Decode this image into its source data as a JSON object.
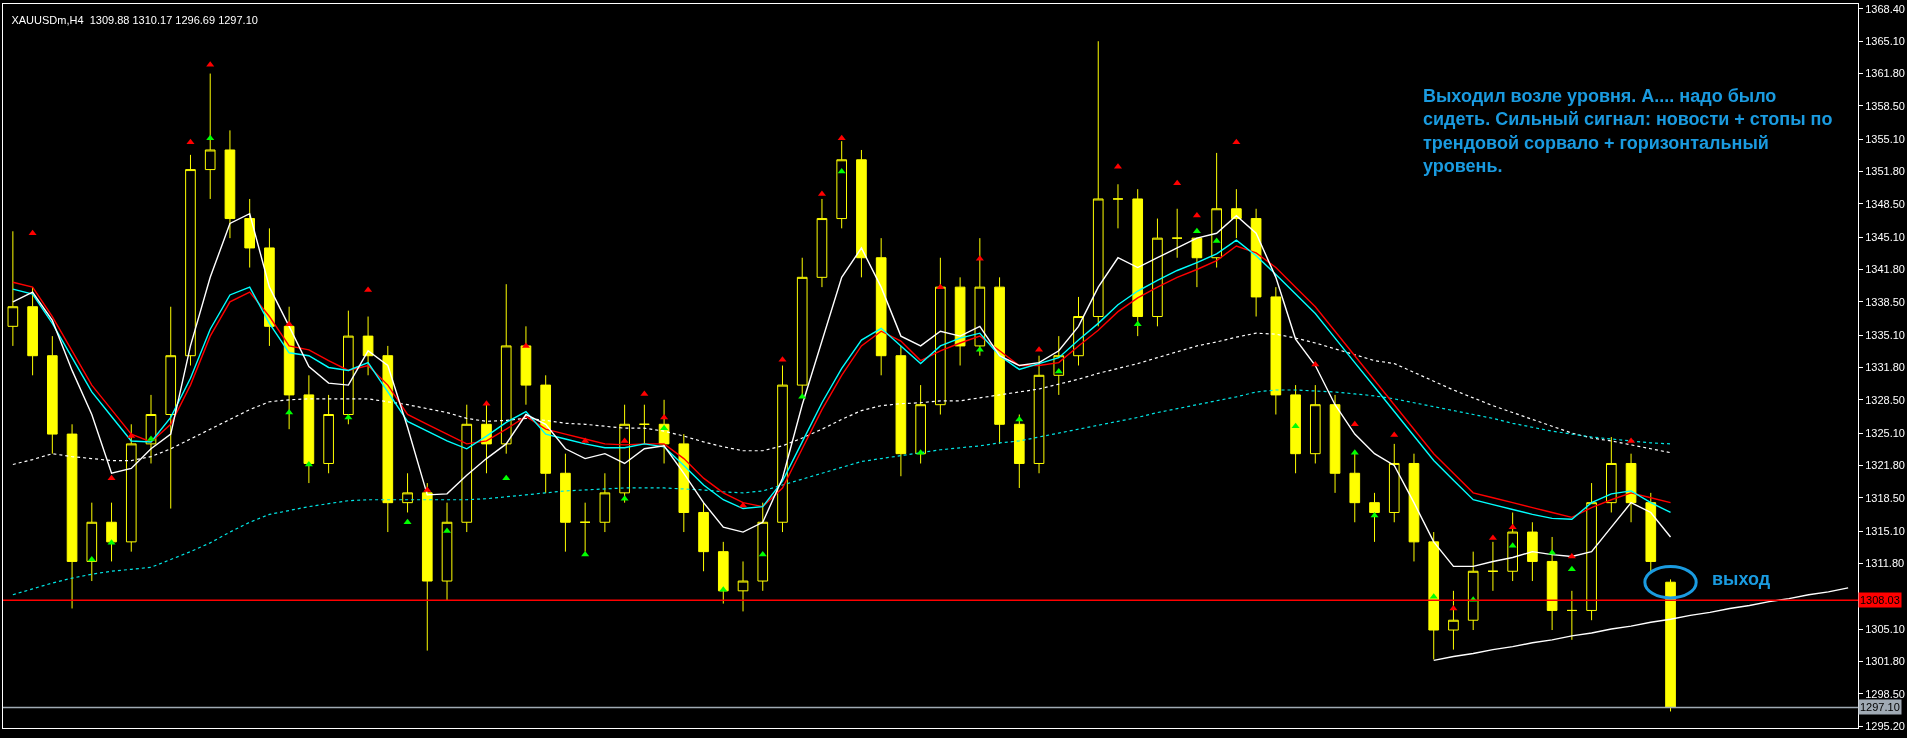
{
  "chart_data": {
    "type": "candlestick",
    "title": "XAUUSDm,H4  1309.88 1310.17 1296.69 1297.10",
    "categories": [
      null,
      null,
      null,
      null,
      null,
      null,
      null,
      null,
      null,
      null,
      null,
      null,
      null,
      null,
      null,
      null,
      null,
      null,
      null,
      null,
      null,
      null,
      null,
      null,
      null,
      null,
      null,
      null,
      null,
      null,
      null,
      null,
      null,
      null,
      null,
      null,
      null,
      null,
      null,
      null,
      null,
      null,
      null,
      null,
      null,
      null,
      null,
      null,
      null,
      null,
      null,
      null,
      null,
      null,
      null,
      null,
      null,
      null,
      null,
      null,
      null,
      null,
      null,
      null,
      null,
      null,
      null,
      null,
      null,
      null,
      null,
      null,
      null,
      null,
      null,
      null,
      null,
      null,
      null,
      null,
      null,
      null,
      null,
      null,
      null,
      null,
      null,
      null,
      null,
      null,
      null,
      null,
      null,
      null
    ],
    "color": "#ffff00",
    "ohlc": [
      [
        1336,
        1345.7,
        1334,
        1338
      ],
      [
        1338,
        1340,
        1331,
        1333
      ],
      [
        1333,
        1335,
        1323,
        1325
      ],
      [
        1325,
        1326,
        1307.2,
        1312
      ],
      [
        1312,
        1318,
        1310,
        1316
      ],
      [
        1316,
        1318,
        1312,
        1314
      ],
      [
        1314,
        1326,
        1313,
        1324
      ],
      [
        1324,
        1329,
        1322,
        1327
      ],
      [
        1327,
        1338,
        1317.4,
        1333
      ],
      [
        1333,
        1353.5,
        1332,
        1352
      ],
      [
        1352,
        1361.8,
        1349,
        1354
      ],
      [
        1354,
        1356,
        1345,
        1347
      ],
      [
        1347,
        1349,
        1342,
        1344
      ],
      [
        1344,
        1346,
        1334,
        1336
      ],
      [
        1336,
        1338,
        1325.5,
        1329
      ],
      [
        1329,
        1331,
        1320,
        1322
      ],
      [
        1322,
        1329,
        1321,
        1327
      ],
      [
        1327,
        1337.6,
        1326,
        1335
      ],
      [
        1335,
        1337,
        1331,
        1333
      ],
      [
        1333,
        1334,
        1315,
        1318
      ],
      [
        1318,
        1321,
        1317,
        1319
      ],
      [
        1319,
        1320,
        1302.9,
        1310
      ],
      [
        1310,
        1318,
        1308,
        1316
      ],
      [
        1316,
        1328,
        1315,
        1326
      ],
      [
        1326,
        1328,
        1321,
        1324
      ],
      [
        1324,
        1340.3,
        1323,
        1334
      ],
      [
        1334,
        1336,
        1328,
        1330
      ],
      [
        1330,
        1331,
        1319,
        1321
      ],
      [
        1321,
        1323,
        1313,
        1316
      ],
      [
        1316,
        1318,
        1313,
        1316
      ],
      [
        1316,
        1321,
        1315,
        1319
      ],
      [
        1319,
        1328,
        1318,
        1326
      ],
      [
        1326,
        1328,
        1324,
        1326
      ],
      [
        1326,
        1328.5,
        1322,
        1324
      ],
      [
        1324,
        1325,
        1315,
        1317
      ],
      [
        1317,
        1318,
        1311,
        1313
      ],
      [
        1313,
        1314,
        1307.7,
        1309
      ],
      [
        1309,
        1312,
        1306.9,
        1310
      ],
      [
        1310,
        1318,
        1309,
        1316
      ],
      [
        1316,
        1332,
        1315,
        1330
      ],
      [
        1330,
        1343,
        1329,
        1341
      ],
      [
        1341,
        1349,
        1340,
        1347
      ],
      [
        1347,
        1354.9,
        1346,
        1353
      ],
      [
        1353,
        1354,
        1341,
        1343
      ],
      [
        1343,
        1345,
        1331,
        1333
      ],
      [
        1333,
        1334,
        1320.7,
        1323
      ],
      [
        1323,
        1330,
        1322,
        1328
      ],
      [
        1328,
        1343,
        1327,
        1340
      ],
      [
        1340,
        1341,
        1332,
        1334
      ],
      [
        1334,
        1345,
        1333,
        1340
      ],
      [
        1340,
        1341,
        1324,
        1326
      ],
      [
        1326,
        1327,
        1319.5,
        1322
      ],
      [
        1322,
        1333,
        1321,
        1331
      ],
      [
        1331,
        1335,
        1329,
        1333
      ],
      [
        1333,
        1339,
        1332,
        1337
      ],
      [
        1337,
        1365.1,
        1336,
        1349
      ],
      [
        1349,
        1350.5,
        1346,
        1349
      ],
      [
        1349,
        1350,
        1335,
        1337
      ],
      [
        1337,
        1347,
        1336,
        1345
      ],
      [
        1345,
        1348,
        1343,
        1345
      ],
      [
        1345,
        1345,
        1340,
        1343
      ],
      [
        1343,
        1353.7,
        1342,
        1348
      ],
      [
        1348,
        1350,
        1345,
        1347
      ],
      [
        1347,
        1348,
        1337,
        1339
      ],
      [
        1339,
        1340,
        1327,
        1329
      ],
      [
        1329,
        1330,
        1321,
        1323
      ],
      [
        1323,
        1330,
        1322,
        1328
      ],
      [
        1328,
        1329,
        1319,
        1321
      ],
      [
        1321,
        1323,
        1316,
        1318
      ],
      [
        1318,
        1319,
        1314,
        1317
      ],
      [
        1317,
        1324,
        1316,
        1322
      ],
      [
        1322,
        1323,
        1312,
        1314
      ],
      [
        1314,
        1315,
        1302,
        1305
      ],
      [
        1305,
        1309,
        1303,
        1306
      ],
      [
        1306,
        1313,
        1305,
        1311
      ],
      [
        1311,
        1314,
        1309,
        1311
      ],
      [
        1311,
        1317,
        1310,
        1315
      ],
      [
        1315,
        1316,
        1310,
        1312
      ],
      [
        1312,
        1314.5,
        1305,
        1307
      ],
      [
        1307,
        1309,
        1304,
        1307
      ],
      [
        1307,
        1320,
        1306,
        1318
      ],
      [
        1318,
        1324.7,
        1317,
        1322
      ],
      [
        1322,
        1323,
        1316,
        1318
      ],
      [
        1318,
        1319,
        1311,
        1312
      ],
      [
        1309.88,
        1310.17,
        1296.69,
        1297.1
      ],
      null,
      null,
      null,
      null,
      null,
      null,
      null,
      null,
      null
    ],
    "series": [
      {
        "type": "line",
        "color": "#ffffff",
        "line_style": "dotted",
        "values": [
          1321.9,
          1322.4,
          1323,
          1322.7,
          1322.5,
          1322.3,
          1322.3,
          1322.7,
          1323.5,
          1324.5,
          1325.5,
          1326.5,
          1327.5,
          1328.3,
          1328.5,
          1328.6,
          1328.6,
          1328.6,
          1328.6,
          1328.3,
          1328,
          1327.6,
          1327.2,
          1326.6,
          1326.3,
          1326.4,
          1326.6,
          1326.4,
          1326.1,
          1326,
          1325.8,
          1325.6,
          1325.6,
          1325.3,
          1324.8,
          1324.2,
          1323.7,
          1323.3,
          1323.3,
          1323.8,
          1324.6,
          1325.5,
          1326.5,
          1327.4,
          1327.9,
          1328.1,
          1328.2,
          1328.4,
          1328.4,
          1328.7,
          1329,
          1329.3,
          1329.6,
          1330.1,
          1330.6,
          1331.2,
          1331.7,
          1332.2,
          1332.8,
          1333.4,
          1334,
          1334.4,
          1334.9,
          1335.3,
          1335.2,
          1334.8,
          1334.3,
          1333.7,
          1333.1,
          1332.5,
          1332.2,
          1331.3,
          1330.4,
          1329.5,
          1328.7,
          1327.9,
          1327.2,
          1326.5,
          1325.8,
          1325.1,
          1324.6,
          1324.3,
          1323.9,
          1323.5,
          1323.1,
          null,
          null,
          null,
          null,
          null,
          null,
          null,
          null,
          null
        ]
      },
      {
        "type": "line",
        "color": "#00e5e5",
        "line_style": "dotted",
        "values": [
          1308.6,
          1309.2,
          1309.8,
          1310.3,
          1310.7,
          1311,
          1311.2,
          1311.4,
          1312.2,
          1313,
          1313.9,
          1315,
          1316,
          1316.8,
          1317.2,
          1317.6,
          1317.9,
          1318.2,
          1318.3,
          1318.3,
          1318.3,
          1318.3,
          1318.3,
          1318.3,
          1318.4,
          1318.6,
          1318.8,
          1319,
          1319.2,
          1319.3,
          1319.4,
          1319.5,
          1319.5,
          1319.5,
          1319.4,
          1319.3,
          1319.1,
          1319,
          1319.2,
          1319.8,
          1320.4,
          1321,
          1321.6,
          1322.2,
          1322.5,
          1322.8,
          1323.1,
          1323.4,
          1323.6,
          1323.8,
          1324.1,
          1324.3,
          1324.7,
          1325.1,
          1325.5,
          1325.9,
          1326.3,
          1326.7,
          1327.2,
          1327.6,
          1328,
          1328.4,
          1328.8,
          1329.3,
          1329.5,
          1329.5,
          1329.4,
          1329.3,
          1329.1,
          1328.9,
          1328.6,
          1328.2,
          1327.8,
          1327.4,
          1327,
          1326.6,
          1326.1,
          1325.7,
          1325.3,
          1325,
          1324.7,
          1324.5,
          1324.3,
          1324.1,
          1324,
          null,
          null,
          null,
          null,
          null,
          null,
          null,
          null,
          null
        ]
      },
      {
        "type": "line",
        "color": "#ff0000",
        "line_style": "solid",
        "values": [
          1340.5,
          1340,
          1337,
          1333.5,
          1330,
          1327.5,
          1325,
          1324.2,
          1326,
          1330,
          1335,
          1338.5,
          1339.5,
          1337,
          1334,
          1333.6,
          1332.5,
          1331.5,
          1332,
          1330,
          1327,
          1326,
          1325,
          1324,
          1324.3,
          1325.5,
          1326.8,
          1325.5,
          1325,
          1324.5,
          1324,
          1323.9,
          1324,
          1324,
          1322.5,
          1320.5,
          1319,
          1318,
          1317.6,
          1319.5,
          1323.5,
          1327.5,
          1331,
          1334,
          1335.5,
          1334.5,
          1332.5,
          1333.5,
          1334.3,
          1335,
          1333.5,
          1332,
          1332,
          1332.3,
          1334,
          1335.6,
          1337.5,
          1338.9,
          1340,
          1341,
          1341.8,
          1342.7,
          1344.2,
          1343.5,
          1342,
          1340,
          1338,
          1335.5,
          1333,
          1330.5,
          1328,
          1325.5,
          1323,
          1321,
          1319,
          1318.5,
          1318,
          1317.5,
          1317,
          1316.5,
          1317.5,
          1318.3,
          1319,
          1318.5,
          1318,
          null,
          null,
          null,
          null,
          null,
          null,
          null,
          null,
          null
        ]
      },
      {
        "type": "line",
        "color": "#00ffff",
        "line_style": "solid",
        "values": [
          1339.8,
          1339.3,
          1336.3,
          1332.8,
          1329.3,
          1326.8,
          1324.3,
          1324.2,
          1326.7,
          1330.7,
          1335.7,
          1339.2,
          1340,
          1336.3,
          1333.3,
          1333,
          1331.8,
          1331.5,
          1332.3,
          1329.3,
          1326.3,
          1325.3,
          1324.3,
          1323.5,
          1324.8,
          1326.2,
          1327.3,
          1325,
          1324.5,
          1324,
          1323.6,
          1323.6,
          1324,
          1323.7,
          1321.8,
          1319.8,
          1318.3,
          1317.4,
          1317.6,
          1320.2,
          1324.2,
          1328.2,
          1331.7,
          1334.6,
          1335.8,
          1334,
          1332.2,
          1334,
          1334.8,
          1335.3,
          1333,
          1331.6,
          1332.2,
          1332.8,
          1334.6,
          1336.3,
          1338.2,
          1339.6,
          1340.7,
          1341.7,
          1342.5,
          1343.4,
          1344.8,
          1343.2,
          1341.3,
          1339.3,
          1337.3,
          1334.8,
          1332.3,
          1329.8,
          1327.3,
          1324.8,
          1322.3,
          1320.3,
          1318.3,
          1317.8,
          1317.3,
          1316.8,
          1316.4,
          1316.3,
          1318,
          1318.9,
          1319.2,
          1318,
          1317,
          null,
          null,
          null,
          null,
          null,
          null,
          null,
          null,
          null
        ]
      },
      {
        "type": "line",
        "color": "#ffffff",
        "line_style": "solid",
        "values": [
          1338.5,
          1339.5,
          1336.6,
          1331.5,
          1327,
          1321,
          1321.5,
          1323.5,
          1325,
          1334,
          1341,
          1346.5,
          1347.5,
          1340,
          1336,
          1331.9,
          1330.2,
          1330,
          1333.5,
          1332,
          1325.7,
          1318.8,
          1318.9,
          1320.8,
          1322.5,
          1324,
          1327,
          1326,
          1323.5,
          1322.5,
          1323,
          1322,
          1323.5,
          1323.8,
          1321,
          1318,
          1315.5,
          1315,
          1316,
          1320.5,
          1328,
          1334.5,
          1341,
          1344,
          1340,
          1335,
          1334,
          1335.5,
          1335,
          1336,
          1333,
          1332,
          1332.3,
          1333.5,
          1336,
          1340,
          1343,
          1342,
          1343,
          1344,
          1345,
          1345.5,
          1347.3,
          1345.5,
          1341,
          1334.7,
          1332,
          1328,
          1325,
          1323,
          1321.8,
          1318,
          1314,
          1311.5,
          1311.5,
          1312,
          1312.4,
          1313,
          1312.7,
          1312.5,
          1313,
          1315.5,
          1318,
          1317,
          1314.5,
          null,
          null,
          null,
          null,
          null,
          null,
          null,
          null,
          null
        ]
      },
      {
        "type": "line",
        "color": "#ffffff",
        "line_style": "solid",
        "values": [
          null,
          null,
          null,
          null,
          null,
          null,
          null,
          null,
          null,
          null,
          null,
          null,
          null,
          null,
          null,
          null,
          null,
          null,
          null,
          null,
          null,
          null,
          null,
          null,
          null,
          null,
          null,
          null,
          null,
          null,
          null,
          null,
          null,
          null,
          null,
          null,
          null,
          null,
          null,
          null,
          null,
          null,
          null,
          null,
          null,
          null,
          null,
          null,
          null,
          null,
          null,
          null,
          null,
          null,
          null,
          null,
          null,
          null,
          null,
          null,
          null,
          null,
          null,
          null,
          null,
          null,
          null,
          null,
          null,
          null,
          null,
          null,
          1301.9,
          1302.3,
          1302.6,
          1303.0,
          1303.3,
          1303.7,
          1304.0,
          1304.4,
          1304.7,
          1305.1,
          1305.4,
          1305.8,
          1306.1,
          1306.5,
          1306.8,
          1307.2,
          1307.5,
          1307.9,
          1308.2,
          1308.6,
          1308.9,
          1309.3
        ]
      },
      {
        "type": "scatter",
        "color": "#ff0000",
        "marker": "triangle",
        "values": [
          null,
          1345.5,
          null,
          null,
          null,
          1320.5,
          1324.8,
          null,
          null,
          1354.8,
          1362.7,
          null,
          null,
          null,
          1336.2,
          null,
          null,
          null,
          1339.7,
          null,
          null,
          1319.3,
          null,
          null,
          1328.1,
          null,
          1334,
          null,
          null,
          1324.3,
          null,
          1324.3,
          1329.1,
          1326.7,
          null,
          null,
          null,
          1317.7,
          null,
          1332.6,
          null,
          1349.5,
          1355.2,
          null,
          null,
          null,
          null,
          1340,
          null,
          1342.9,
          null,
          null,
          1333.6,
          null,
          null,
          null,
          1352.3,
          null,
          null,
          1350.6,
          1347.3,
          null,
          1354.8,
          null,
          null,
          null,
          1332.1,
          null,
          1326,
          null,
          1324.9,
          null,
          null,
          1307.2,
          null,
          1314.4,
          1315.5,
          null,
          null,
          1312.5,
          null,
          null,
          1324.3,
          null,
          null,
          null,
          null,
          null,
          null,
          null,
          null,
          null,
          null,
          null
        ]
      },
      {
        "type": "scatter",
        "color": "#00ff00",
        "marker": "triangle",
        "values": [
          null,
          null,
          null,
          null,
          1312.2,
          1313.9,
          null,
          1324.5,
          null,
          null,
          1355.2,
          null,
          null,
          null,
          1327.2,
          1321.9,
          null,
          1326.7,
          null,
          null,
          1316,
          null,
          1315.1,
          null,
          null,
          1320.5,
          null,
          null,
          null,
          1312.7,
          null,
          1318.4,
          null,
          1325.6,
          null,
          null,
          1309.1,
          null,
          1312.7,
          null,
          1328.8,
          null,
          1351.8,
          null,
          null,
          null,
          1323.1,
          null,
          null,
          1333.6,
          null,
          1326.5,
          null,
          1331.4,
          null,
          null,
          null,
          1336.2,
          null,
          null,
          1345.7,
          1344.7,
          null,
          null,
          null,
          1325.8,
          null,
          null,
          1323.1,
          1316.7,
          null,
          null,
          1308.4,
          null,
          1308.1,
          null,
          1313.6,
          null,
          1312.9,
          1311.2,
          null,
          null,
          null,
          null,
          null,
          null,
          null,
          null,
          null,
          null,
          null,
          null,
          null,
          null
        ]
      }
    ],
    "ylim": [
      1295.0,
      1368.9
    ],
    "yticks": [
      {
        "value": 1368.4,
        "label": "1368.40"
      },
      {
        "value": 1365.1,
        "label": "1365.10"
      },
      {
        "value": 1361.8,
        "label": "1361.80"
      },
      {
        "value": 1358.5,
        "label": "1358.50"
      },
      {
        "value": 1355.1,
        "label": "1355.10"
      },
      {
        "value": 1351.8,
        "label": "1351.80"
      },
      {
        "value": 1348.5,
        "label": "1348.50"
      },
      {
        "value": 1345.1,
        "label": "1345.10"
      },
      {
        "value": 1341.8,
        "label": "1341.80"
      },
      {
        "value": 1338.5,
        "label": "1338.50"
      },
      {
        "value": 1335.1,
        "label": "1335.10"
      },
      {
        "value": 1331.8,
        "label": "1331.80"
      },
      {
        "value": 1328.5,
        "label": "1328.50"
      },
      {
        "value": 1325.1,
        "label": "1325.10"
      },
      {
        "value": 1321.8,
        "label": "1321.80"
      },
      {
        "value": 1318.5,
        "label": "1318.50"
      },
      {
        "value": 1315.1,
        "label": "1315.10"
      },
      {
        "value": 1311.8,
        "label": "1311.80"
      },
      {
        "value": 1305.1,
        "label": "1305.10"
      },
      {
        "value": 1301.8,
        "label": "1301.80"
      },
      {
        "value": 1298.5,
        "label": "1298.50"
      },
      {
        "value": 1295.2,
        "label": "1295.20"
      }
    ],
    "ref_lines": [
      {
        "axis": "y",
        "value": 1308.03,
        "label": "1308.03",
        "color": "#ff0000"
      },
      {
        "axis": "y",
        "value": 1297.1,
        "label": "1297.10",
        "color": "#a0aab4"
      }
    ],
    "annotations": [
      "Выходил возле уровня. А.... надо было сидеть. Сильный сигнал: новости + стопы по трендовой сорвало + горизонтальный уровень.",
      "выход"
    ],
    "tick_labels": "y",
    "grid": false
  }
}
